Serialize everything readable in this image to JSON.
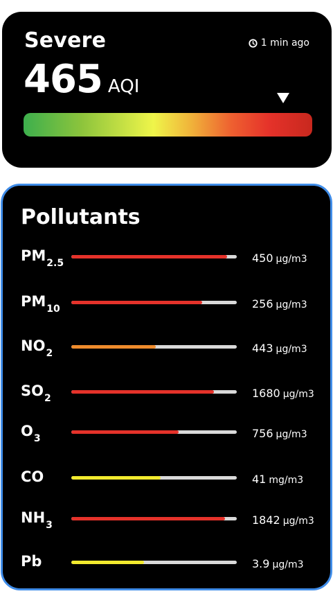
{
  "aqi": {
    "status": "Severe",
    "updated": "1 min ago",
    "value": "465",
    "unit": "AQI",
    "scale_marker_fraction": 0.9
  },
  "pollutants": {
    "title": "Pollutants",
    "items": [
      {
        "name": "PM",
        "sub": "2.5",
        "value": "450",
        "unit": "μg/m3",
        "level": 0.94,
        "color": "#e5322a"
      },
      {
        "name": "PM",
        "sub": "10",
        "value": "256",
        "unit": "μg/m3",
        "level": 0.79,
        "color": "#e5322a"
      },
      {
        "name": "NO",
        "sub": "2",
        "value": "443",
        "unit": "μg/m3",
        "level": 0.51,
        "color": "#ef8b2c"
      },
      {
        "name": "SO",
        "sub": "2",
        "value": "1680",
        "unit": "μg/m3",
        "level": 0.86,
        "color": "#e5322a"
      },
      {
        "name": "O",
        "sub": "3",
        "value": "756",
        "unit": "μg/m3",
        "level": 0.65,
        "color": "#e5322a"
      },
      {
        "name": "CO",
        "sub": "",
        "value": "41",
        "unit": "mg/m3",
        "level": 0.54,
        "color": "#f2ea2e"
      },
      {
        "name": "NH",
        "sub": "3",
        "value": "1842",
        "unit": "μg/m3",
        "level": 0.93,
        "color": "#e5322a"
      },
      {
        "name": "Pb",
        "sub": "",
        "value": "3.9",
        "unit": "μg/m3",
        "level": 0.44,
        "color": "#f2ea2e"
      }
    ]
  },
  "colors": {
    "card_background": "#000000",
    "pollutants_border": "#3f8ce8",
    "bar_track": "#d9d9d9",
    "severe_red": "#e5322a",
    "moderate_orange": "#ef8b2c",
    "low_yellow": "#f2ea2e"
  },
  "icons": {
    "clock": "clock-icon",
    "marker": "triangle-down-icon"
  }
}
